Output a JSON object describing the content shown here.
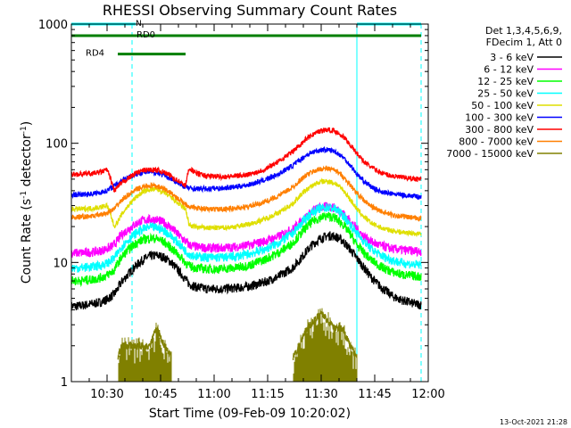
{
  "chart_data": {
    "type": "line",
    "title": "RHESSI Observing Summary Count Rates",
    "xlabel": "Start Time (09-Feb-09 10:20:02)",
    "ylabel_main": "Count Rate (s",
    "ylabel_sup1": "-1",
    "ylabel_mid": " detector",
    "ylabel_sup2": "-1",
    "ylabel_end": ")",
    "yscale": "log",
    "ylim": [
      1,
      1000
    ],
    "xlim_min": [
      20,
      120
    ],
    "ytick_labels": [
      "1",
      "10",
      "100",
      "1000"
    ],
    "ytick_values": [
      1,
      10,
      100,
      1000
    ],
    "xtick_labels": [
      "10:30",
      "10:45",
      "11:00",
      "11:15",
      "11:30",
      "11:45",
      "12:00"
    ],
    "xtick_values": [
      30,
      45,
      60,
      75,
      90,
      105,
      120
    ],
    "legend_title_1": "Det 1,3,4,5,6,9,",
    "legend_title_2": "FDecim 1, Att 0",
    "timestamp": "13-Oct-2021 21:28",
    "flags": [
      {
        "label": "N",
        "color": "#00ffff",
        "y": 1000,
        "segments": [
          [
            20,
            38
          ],
          [
            100,
            118
          ]
        ]
      },
      {
        "label": "RD0",
        "color": "#007f00",
        "y": 800,
        "segments": [
          [
            20,
            52
          ],
          [
            52,
            118
          ]
        ]
      },
      {
        "label": "RD4",
        "color": "#007f00",
        "y": 560,
        "segments": [
          [
            33,
            52
          ]
        ]
      }
    ],
    "vlines": [
      {
        "x": 20,
        "color": "#00ffff",
        "style": "solid"
      },
      {
        "x": 37,
        "color": "#00ffff",
        "style": "dashed"
      },
      {
        "x": 100,
        "color": "#00ffff",
        "style": "solid"
      },
      {
        "x": 118,
        "color": "#00ffff",
        "style": "dashed"
      }
    ],
    "x": [
      20,
      22,
      24,
      26,
      28,
      30,
      32,
      33,
      34,
      36,
      38,
      40,
      42,
      44,
      46,
      48,
      50,
      52,
      53,
      55,
      58,
      62,
      66,
      70,
      74,
      78,
      82,
      84,
      86,
      88,
      90,
      92,
      94,
      96,
      98,
      100,
      102,
      104,
      106,
      108,
      110,
      112,
      114,
      116,
      118
    ],
    "series": [
      {
        "name": "3 - 6 keV",
        "color": "#000000",
        "values": [
          4.3,
          4.3,
          4.4,
          4.5,
          4.6,
          4.9,
          5.4,
          6.0,
          6.8,
          8.0,
          9.3,
          10.5,
          11.3,
          11.5,
          11.0,
          10.0,
          8.5,
          7.2,
          6.6,
          6.2,
          6.0,
          6.0,
          6.1,
          6.3,
          6.8,
          7.6,
          9.0,
          10.5,
          12.5,
          14.5,
          16.0,
          16.8,
          16.5,
          15.2,
          13.0,
          10.8,
          9.0,
          7.5,
          6.5,
          5.8,
          5.2,
          4.9,
          4.7,
          4.5,
          4.4
        ]
      },
      {
        "name": "6 - 12 keV",
        "color": "#ff00ff",
        "values": [
          12.0,
          12.0,
          12.1,
          12.2,
          12.5,
          13.0,
          14.0,
          15.5,
          17.0,
          19.0,
          21.0,
          22.5,
          23.0,
          22.8,
          21.5,
          19.5,
          17.0,
          15.0,
          14.0,
          13.5,
          13.2,
          13.2,
          13.5,
          14.0,
          15.0,
          16.5,
          19.0,
          21.5,
          24.5,
          27.5,
          29.0,
          29.5,
          28.5,
          26.0,
          22.5,
          19.0,
          16.5,
          15.0,
          14.0,
          13.5,
          13.0,
          12.8,
          12.6,
          12.5,
          12.4
        ]
      },
      {
        "name": "12 - 25 keV",
        "color": "#00ff00",
        "values": [
          7.0,
          7.0,
          7.1,
          7.2,
          7.4,
          7.8,
          8.6,
          9.8,
          11.0,
          12.8,
          14.5,
          15.5,
          16.0,
          15.8,
          14.8,
          13.2,
          11.5,
          10.0,
          9.3,
          9.0,
          8.8,
          8.8,
          9.0,
          9.5,
          10.5,
          12.0,
          14.5,
          17.0,
          20.0,
          22.5,
          24.0,
          24.5,
          23.5,
          21.0,
          17.5,
          14.0,
          12.0,
          10.5,
          9.5,
          8.8,
          8.3,
          8.0,
          7.8,
          7.7,
          7.6
        ]
      },
      {
        "name": "25 - 50 keV",
        "color": "#00ffff",
        "values": [
          9.0,
          9.0,
          9.1,
          9.2,
          9.4,
          9.8,
          10.8,
          12.0,
          13.5,
          15.5,
          17.5,
          19.0,
          19.8,
          19.5,
          18.5,
          16.5,
          14.5,
          12.5,
          11.8,
          11.2,
          11.0,
          11.0,
          11.2,
          11.8,
          12.8,
          14.5,
          17.5,
          20.5,
          24.0,
          27.0,
          28.5,
          29.0,
          28.0,
          25.0,
          21.0,
          17.5,
          15.0,
          13.0,
          11.8,
          11.0,
          10.5,
          10.0,
          9.8,
          9.6,
          9.5
        ]
      },
      {
        "name": "50 - 100 keV",
        "color": "#dfdf00",
        "values": [
          28.0,
          28.0,
          28.2,
          28.5,
          29.0,
          30.0,
          20.0,
          22.0,
          25.0,
          30.0,
          35.0,
          39.0,
          41.0,
          41.0,
          38.5,
          35.0,
          31.0,
          28.0,
          20.5,
          19.8,
          19.5,
          19.5,
          20.0,
          21.0,
          23.0,
          26.0,
          31.0,
          36.0,
          41.0,
          45.0,
          47.5,
          48.0,
          46.0,
          41.0,
          34.0,
          28.0,
          24.0,
          21.5,
          20.0,
          19.0,
          18.5,
          18.0,
          17.8,
          17.5,
          17.3
        ]
      },
      {
        "name": "100 - 300 keV",
        "color": "#0000ff",
        "values": [
          37.0,
          37.0,
          37.3,
          37.8,
          38.5,
          40.0,
          44.0,
          46.0,
          49.0,
          52.0,
          55.0,
          57.0,
          57.5,
          56.5,
          54.0,
          50.0,
          46.0,
          43.0,
          42.0,
          41.5,
          41.5,
          42.0,
          43.0,
          45.0,
          49.0,
          55.0,
          65.0,
          72.0,
          80.0,
          85.0,
          88.0,
          88.0,
          85.0,
          77.0,
          66.0,
          55.0,
          48.0,
          43.0,
          40.0,
          38.5,
          37.5,
          37.0,
          36.5,
          36.0,
          35.5
        ]
      },
      {
        "name": "300 - 800 keV",
        "color": "#ff0000",
        "values": [
          55.0,
          55.0,
          55.5,
          56.0,
          57.0,
          60.0,
          40.0,
          43.0,
          46.0,
          51.0,
          56.0,
          59.0,
          60.0,
          59.5,
          57.0,
          53.0,
          48.0,
          44.0,
          62.0,
          56.0,
          53.0,
          52.5,
          53.0,
          55.0,
          60.0,
          70.0,
          85.0,
          97.0,
          110.0,
          120.0,
          128.0,
          130.0,
          126.0,
          115.0,
          98.0,
          82.0,
          70.0,
          63.0,
          58.0,
          55.0,
          53.0,
          52.0,
          51.0,
          50.5,
          50.0
        ]
      },
      {
        "name": "800 - 7000 keV",
        "color": "#ff7f00",
        "values": [
          24.0,
          24.0,
          24.2,
          24.5,
          25.0,
          26.0,
          28.0,
          30.5,
          33.0,
          37.0,
          40.5,
          43.0,
          44.0,
          43.5,
          41.5,
          38.0,
          34.0,
          31.0,
          29.5,
          28.5,
          28.0,
          28.0,
          28.5,
          29.5,
          32.0,
          36.0,
          42.5,
          48.5,
          54.5,
          58.5,
          61.0,
          61.5,
          59.0,
          53.0,
          45.0,
          38.0,
          33.0,
          29.5,
          27.5,
          26.0,
          25.0,
          24.5,
          24.0,
          23.5,
          23.3
        ]
      },
      {
        "name": "7000 - 15000 keV",
        "color": "#808000",
        "values": [
          null,
          null,
          null,
          null,
          null,
          null,
          null,
          1.6,
          2.0,
          2.0,
          2.0,
          2.0,
          2.0,
          2.8,
          2.0,
          1.6,
          null,
          null,
          null,
          null,
          null,
          null,
          null,
          null,
          null,
          null,
          1.6,
          2.0,
          2.8,
          3.2,
          3.8,
          3.2,
          2.8,
          2.8,
          2.0,
          1.6,
          null,
          null,
          null,
          null,
          null,
          null,
          null,
          null,
          null
        ]
      }
    ]
  }
}
